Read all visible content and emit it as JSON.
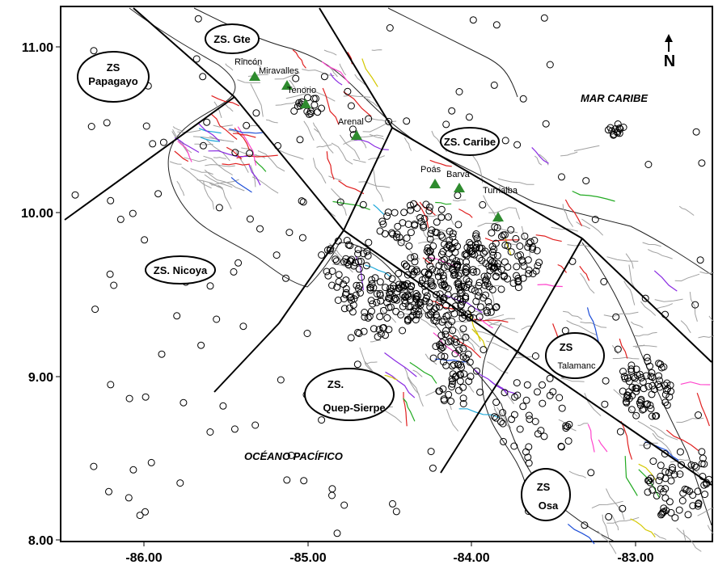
{
  "map": {
    "x_ticks": [
      "-86.00",
      "-85.00",
      "-84.00",
      "-83.00"
    ],
    "y_ticks": [
      "11.00",
      "10.00",
      "9.00",
      "8.00"
    ],
    "north_arrow_label": "N",
    "sea_labels": {
      "caribbean": "MAR CARIBE",
      "pacific": "OCÉANO PACÍFICO"
    },
    "zones": [
      {
        "id": "papagayo",
        "line1": "ZS",
        "line2": "Papagayo"
      },
      {
        "id": "gte",
        "line1": "ZS. Gte",
        "line2": ""
      },
      {
        "id": "caribe",
        "line1": "ZS. Caribe",
        "line2": ""
      },
      {
        "id": "nicoya",
        "line1": "ZS. Nicoya",
        "line2": ""
      },
      {
        "id": "quep",
        "line1": "ZS.",
        "line2": "Quep-Sierpe"
      },
      {
        "id": "talamanca",
        "line1": "ZS",
        "line2": "Talamanc"
      },
      {
        "id": "osa",
        "line1": "ZS",
        "line2": "Osa"
      }
    ],
    "volcanoes": [
      "Rincón",
      "Miravalles",
      "Tenorio",
      "Arenal",
      "Poás",
      "Barva",
      "Turrialba"
    ],
    "colors": {
      "volcano": "#2e8b2e",
      "zone_line": "#000000",
      "fault_main": "#e02020"
    }
  }
}
